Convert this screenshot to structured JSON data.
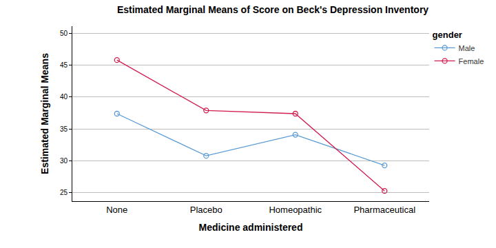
{
  "chart_data": {
    "type": "line",
    "title": "Estimated Marginal Means of Score on Beck's Depression Inventory",
    "x_label": "Medicine administered",
    "y_label": "Estimated Marginal Means",
    "legend_title": "gender",
    "categories": [
      "None",
      "Placebo",
      "Homeopathic",
      "Pharmaceutical"
    ],
    "series": [
      {
        "name": "Male",
        "color": "#5b9bd5",
        "values": [
          37.4,
          30.8,
          34.1,
          29.3
        ]
      },
      {
        "name": "Female",
        "color": "#d01c4e",
        "values": [
          45.8,
          37.9,
          37.4,
          25.3
        ]
      }
    ],
    "ylim": [
      23.7,
      51.1
    ],
    "yticks": [
      25,
      30,
      35,
      40,
      45,
      50
    ],
    "grid": true,
    "legend": "upper right",
    "marker": "open circle",
    "line_style": "solid"
  }
}
